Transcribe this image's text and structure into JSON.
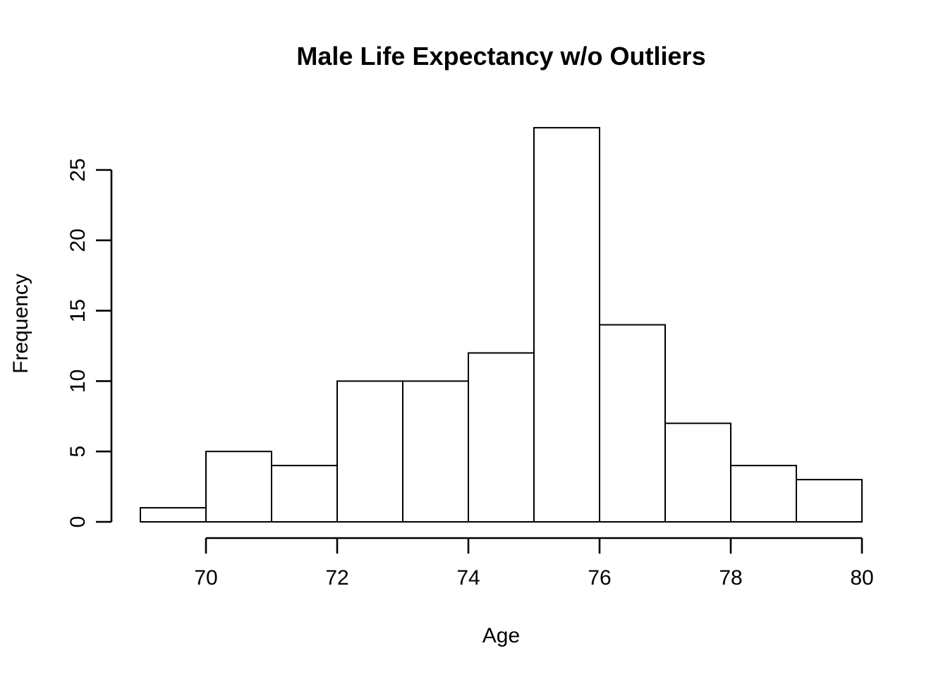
{
  "page": {
    "background": "#ffffff"
  },
  "chart_data": {
    "type": "bar",
    "subtype": "histogram",
    "title": "Male Life Expectancy w/o Outliers",
    "xlabel": "Age",
    "ylabel": "Frequency",
    "bin_edges": [
      69,
      70,
      71,
      72,
      73,
      74,
      75,
      76,
      77,
      78,
      79,
      80
    ],
    "counts": [
      1,
      5,
      4,
      10,
      10,
      12,
      28,
      14,
      7,
      4,
      3
    ],
    "xlim": [
      69,
      80
    ],
    "ylim": [
      0,
      28
    ],
    "x_ticks": [
      70,
      72,
      74,
      76,
      78,
      80
    ],
    "y_ticks": [
      0,
      5,
      10,
      15,
      20,
      25
    ],
    "grid": "off",
    "legend": "none",
    "bar_fill": "#ffffff",
    "bar_stroke": "#000000",
    "axis_color": "#000000",
    "text_color": "#000000"
  }
}
